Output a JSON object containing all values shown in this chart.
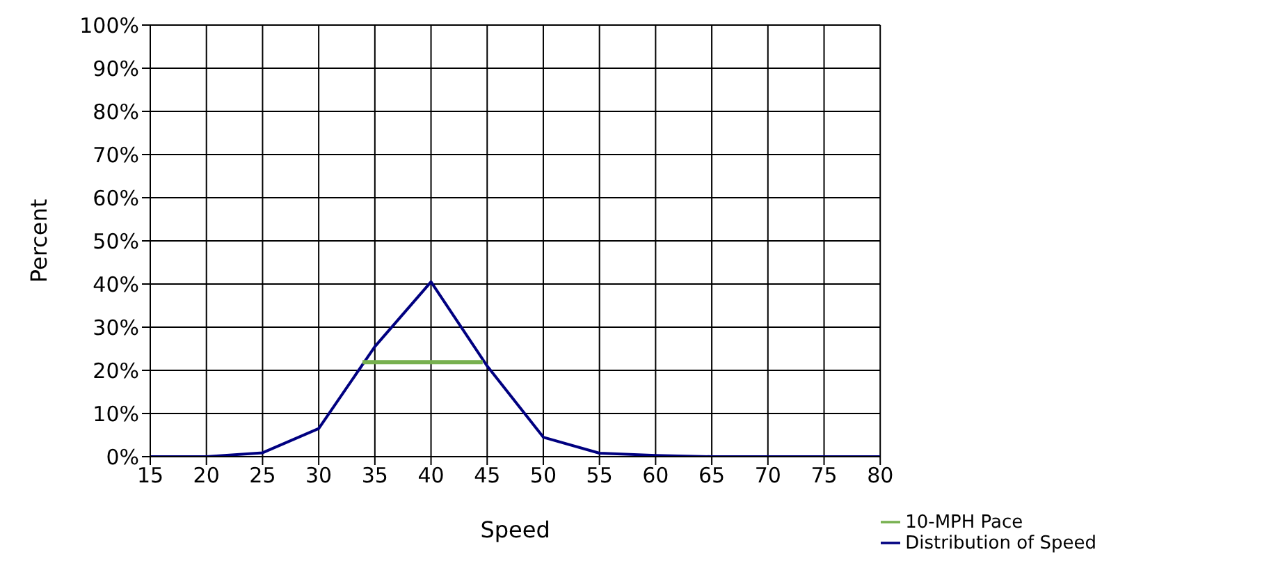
{
  "chart_data": {
    "type": "line",
    "xlabel": "Speed",
    "ylabel": "Percent",
    "x": [
      15,
      20,
      25,
      30,
      35,
      40,
      45,
      50,
      55,
      60,
      65,
      70,
      75,
      80
    ],
    "series": [
      {
        "name": "Distribution of Speed",
        "color": "#000080",
        "values": [
          0,
          0,
          0.9,
          6.5,
          25.5,
          40.5,
          21,
          4.5,
          0.8,
          0.3,
          0,
          0,
          0,
          0
        ]
      },
      {
        "name": "10-MPH Pace",
        "color": "#77b04f",
        "x": [
          33.9,
          44.6
        ],
        "values": [
          21.9,
          21.9
        ]
      }
    ],
    "xlim": [
      15,
      80
    ],
    "xticks": [
      15,
      20,
      25,
      30,
      35,
      40,
      45,
      50,
      55,
      60,
      65,
      70,
      75,
      80
    ],
    "ylim": [
      0,
      100
    ],
    "yticks": [
      {
        "value": 0,
        "label": "0%"
      },
      {
        "value": 10,
        "label": "10%"
      },
      {
        "value": 20,
        "label": "20%"
      },
      {
        "value": 30,
        "label": "30%"
      },
      {
        "value": 40,
        "label": "40%"
      },
      {
        "value": 50,
        "label": "50%"
      },
      {
        "value": 60,
        "label": "60%"
      },
      {
        "value": 70,
        "label": "70%"
      },
      {
        "value": 80,
        "label": "80%"
      },
      {
        "value": 90,
        "label": "90%"
      },
      {
        "value": 100,
        "label": "100%"
      }
    ],
    "grid": true,
    "legend": "bottom right",
    "marker": "none",
    "line_style": "solid"
  }
}
